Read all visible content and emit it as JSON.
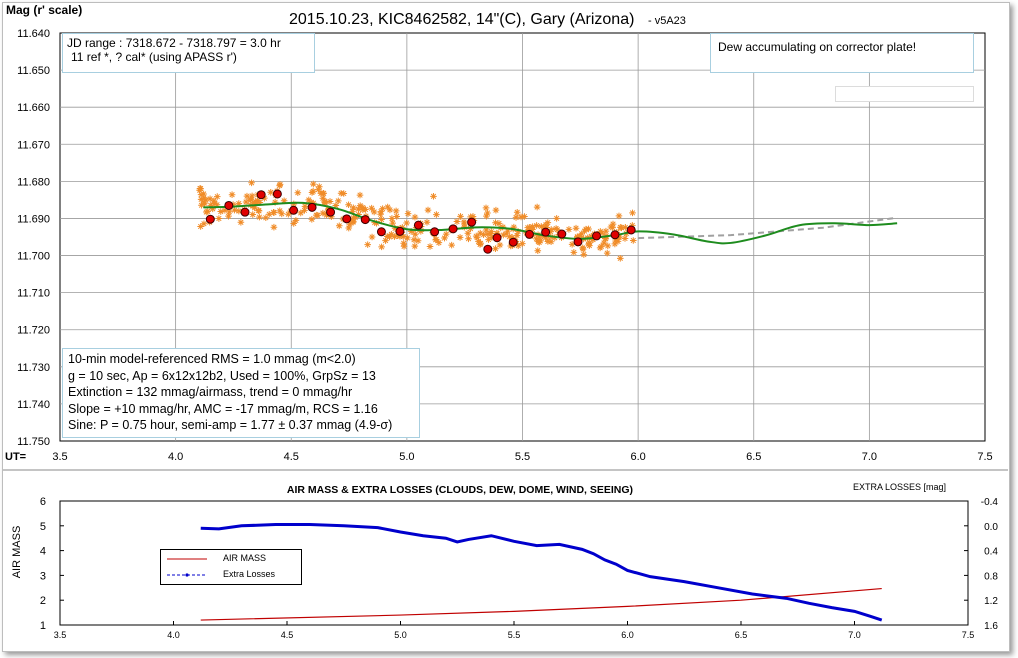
{
  "top": {
    "title": "2015.10.23, KIC8462582, 14\"(C), Gary (Arizona)",
    "title_suffix": "- v5A23",
    "ylabel": "Mag (r' scale)",
    "xlabel_prefix": "UT=",
    "jd_line1": "JD range : 7318.672 - 7318.797 = 3.0 hr",
    "jd_line2": "11 ref *, ? cal* (using APASS r')",
    "dew_note": "Dew accumulating on corrector plate!",
    "stats": [
      "10-min model-referenced RMS = 1.0 mmag (m<2.0)",
      "g = 10 sec, Ap = 6x12x12b2, Used = 100%,  GrpSz = 13",
      "Extinction = 132 mmag/airmass, trend = 0 mmag/hr",
      "Slope = +10 mmag/hr, AMC = -17 mmag/m, RCS = 1.16",
      "Sine: P = 0.75 hour, semi-amp = 1.77 ± 0.37 mmag (4.9-σ)"
    ]
  },
  "bottom": {
    "title": "AIR MASS & EXTRA LOSSES (CLOUDS, DEW, DOME, WIND, SEEING)",
    "ylabel": "AIR MASS",
    "y2label": "EXTRA LOSSES [mag]",
    "legend_airmass": "AIR MASS",
    "legend_losses": "Extra Losses"
  },
  "colors": {
    "raw": "#f08c28",
    "binned_fill": "#e00000",
    "sine": "#1e8c1e",
    "trend": "#a0a0a0",
    "airmass": "#c00000",
    "losses": "#0000cc",
    "grid": "#9a9a9a"
  },
  "chart_data": [
    {
      "type": "scatter",
      "title": "2015.10.23, KIC8462582, 14\"(C), Gary (Arizona) - v5A23",
      "ylabel": "Mag (r' scale)",
      "xlabel": "UT=",
      "xlim": [
        3.5,
        7.5
      ],
      "ylim": [
        11.75,
        11.64
      ],
      "y_inverted": true,
      "xticks": [
        "3.5",
        "4.0",
        "4.5",
        "5.0",
        "5.5",
        "6.0",
        "6.5",
        "7.0",
        "7.5"
      ],
      "yticks": [
        "11.640",
        "11.650",
        "11.660",
        "11.670",
        "11.680",
        "11.690",
        "11.700",
        "11.710",
        "11.720",
        "11.730",
        "11.740",
        "11.750"
      ],
      "grid": true,
      "series": [
        {
          "name": "",
          "kind": "raw",
          "x_range": [
            4.1,
            5.98
          ],
          "center_curve": "sine",
          "scatter_sd": 0.0042
        },
        {
          "name": "",
          "kind": "binned",
          "x": [
            4.15,
            4.23,
            4.3,
            4.37,
            4.44,
            4.51,
            4.59,
            4.67,
            4.74,
            4.82,
            4.89,
            4.97,
            5.05,
            5.12,
            5.2,
            5.28,
            5.35,
            5.39,
            5.46,
            5.53,
            5.6,
            5.67,
            5.74,
            5.82,
            5.9,
            5.97
          ],
          "y": [
            11.6902,
            11.6865,
            11.6883,
            11.6836,
            11.6834,
            11.6878,
            11.687,
            11.6883,
            11.6901,
            11.6903,
            11.6936,
            11.6935,
            11.6918,
            11.6936,
            11.6928,
            11.691,
            11.6983,
            11.6952,
            11.6964,
            11.6943,
            11.6937,
            11.6942,
            11.6963,
            11.6947,
            11.6944,
            11.6931
          ]
        },
        {
          "name": "",
          "kind": "sine",
          "x": [
            4.12,
            4.25,
            4.4,
            4.55,
            4.7,
            4.85,
            5.0,
            5.15,
            5.3,
            5.45,
            5.6,
            5.75,
            5.9,
            6.0,
            6.15,
            6.3,
            6.4,
            6.55,
            6.7,
            6.85,
            7.0,
            7.12
          ],
          "y": [
            11.687,
            11.6868,
            11.6862,
            11.6858,
            11.6874,
            11.6906,
            11.6929,
            11.6931,
            11.6924,
            11.6928,
            11.6946,
            11.6955,
            11.6945,
            11.6935,
            11.6943,
            11.6962,
            11.6966,
            11.6946,
            11.6918,
            11.6913,
            11.6918,
            11.6913
          ]
        },
        {
          "name": "",
          "kind": "trend",
          "x": [
            6.0,
            6.4,
            6.8,
            7.12
          ],
          "y": [
            11.6953,
            11.6945,
            11.6925,
            11.6898
          ]
        }
      ],
      "annotations": [
        "JD range : 7318.672 - 7318.797 = 3.0 hr",
        "11 ref *, ? cal* (using APASS r')",
        "Dew accumulating on corrector plate!"
      ]
    },
    {
      "type": "line",
      "title": "AIR MASS & EXTRA LOSSES (CLOUDS, DEW, DOME, WIND, SEEING)",
      "ylabel": "AIR MASS",
      "y2label": "EXTRA LOSSES [mag]",
      "xlim": [
        3.5,
        7.5
      ],
      "ylim": [
        1,
        6
      ],
      "y2lim": [
        1.6,
        -0.4
      ],
      "xticks": [
        "3.5",
        "4.0",
        "4.5",
        "5.0",
        "5.5",
        "6.0",
        "6.5",
        "7.0",
        "7.5"
      ],
      "yticks": [
        "1",
        "2",
        "3",
        "4",
        "5",
        "6"
      ],
      "y2ticks": [
        "-0.4",
        "0.0",
        "0.4",
        "0.8",
        "1.2",
        "1.6"
      ],
      "legend": "left",
      "series": [
        {
          "name": "AIR MASS",
          "x": [
            4.12,
            5.0,
            5.5,
            6.0,
            6.5,
            7.12
          ],
          "y": [
            1.2,
            1.4,
            1.55,
            1.75,
            2.0,
            2.47
          ]
        },
        {
          "name": "Extra Losses",
          "x": [
            4.12,
            4.2,
            4.3,
            4.45,
            4.6,
            4.75,
            4.9,
            5.0,
            5.1,
            5.2,
            5.25,
            5.3,
            5.4,
            5.5,
            5.6,
            5.7,
            5.8,
            5.85,
            5.9,
            5.95,
            6.0,
            6.1,
            6.25,
            6.4,
            6.55,
            6.7,
            6.8,
            6.9,
            7.0,
            7.07,
            7.12
          ],
          "y": [
            0.04,
            0.05,
            0.0,
            -0.02,
            -0.02,
            0.0,
            0.03,
            0.1,
            0.16,
            0.2,
            0.26,
            0.22,
            0.16,
            0.25,
            0.32,
            0.3,
            0.38,
            0.45,
            0.55,
            0.62,
            0.72,
            0.82,
            0.9,
            1.0,
            1.1,
            1.17,
            1.25,
            1.32,
            1.38,
            1.46,
            1.52
          ]
        }
      ]
    }
  ]
}
